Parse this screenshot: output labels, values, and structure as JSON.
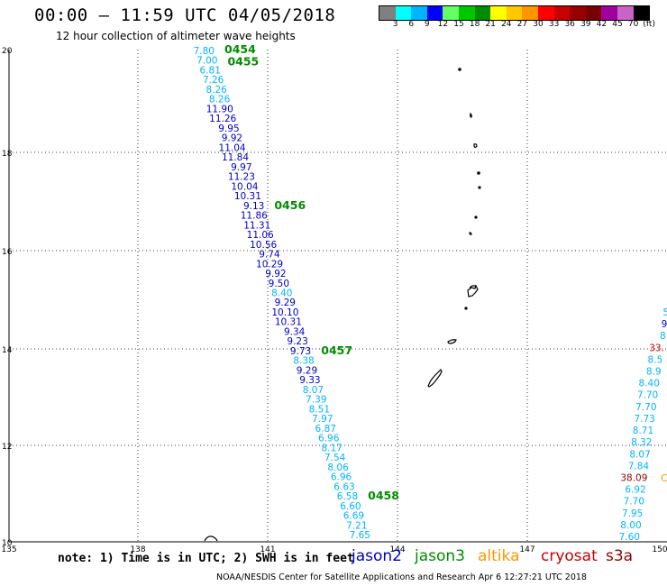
{
  "header": {
    "title": "00:00 – 11:59 UTC 04/05/2018",
    "subtitle": "12 hour collection of altimeter wave heights"
  },
  "legend": {
    "colors": [
      "#808080",
      "#00ffff",
      "#00b4ff",
      "#0000ff",
      "#64ff64",
      "#00c800",
      "#008c00",
      "#ffff00",
      "#ffc800",
      "#ff9600",
      "#ff0000",
      "#c80000",
      "#960000",
      "#780000",
      "#a000a0",
      "#c864c8",
      "#000000"
    ],
    "labels": [
      "3",
      "6",
      "9",
      "12",
      "15",
      "18",
      "21",
      "24",
      "27",
      "30",
      "33",
      "36",
      "39",
      "42",
      "45",
      "70",
      "(ft)"
    ]
  },
  "axes": {
    "x_ticks": [
      "135",
      "138",
      "141",
      "144",
      "147",
      "150"
    ],
    "y_ticks": [
      "20",
      "18",
      "16",
      "14",
      "12",
      "10"
    ]
  },
  "track_left": [
    {
      "value": "7.80",
      "color": "#00b4ff"
    },
    {
      "value": "7.00",
      "color": "#00b4ff"
    },
    {
      "value": "6.81",
      "color": "#00b4ff"
    },
    {
      "value": "7.26",
      "color": "#00b4ff"
    },
    {
      "value": "8.26",
      "color": "#00b4ff"
    },
    {
      "value": "8.26",
      "color": "#00b4ff"
    },
    {
      "value": "11.90",
      "color": "#0000c8"
    },
    {
      "value": "11.26",
      "color": "#0000c8"
    },
    {
      "value": "9.95",
      "color": "#0000c8"
    },
    {
      "value": "9.92",
      "color": "#0000c8"
    },
    {
      "value": "11.04",
      "color": "#0000c8"
    },
    {
      "value": "11.84",
      "color": "#0000c8"
    },
    {
      "value": "9.97",
      "color": "#0000c8"
    },
    {
      "value": "11.23",
      "color": "#0000c8"
    },
    {
      "value": "10.04",
      "color": "#0000c8"
    },
    {
      "value": "10.31",
      "color": "#0000c8"
    },
    {
      "value": "9.13",
      "color": "#0000c8"
    },
    {
      "value": "11.86",
      "color": "#0000c8"
    },
    {
      "value": "11.31",
      "color": "#0000c8"
    },
    {
      "value": "11.06",
      "color": "#0000c8"
    },
    {
      "value": "10.56",
      "color": "#0000c8"
    },
    {
      "value": "9.74",
      "color": "#0000c8"
    },
    {
      "value": "10.29",
      "color": "#0000c8"
    },
    {
      "value": "9.92",
      "color": "#0000c8"
    },
    {
      "value": "9.50",
      "color": "#0000c8"
    },
    {
      "value": "8.40",
      "color": "#00b4ff"
    },
    {
      "value": "9.29",
      "color": "#0000c8"
    },
    {
      "value": "10.10",
      "color": "#0000c8"
    },
    {
      "value": "10.31",
      "color": "#0000c8"
    },
    {
      "value": "9.34",
      "color": "#0000c8"
    },
    {
      "value": "9.23",
      "color": "#0000c8"
    },
    {
      "value": "9.73",
      "color": "#0000c8"
    },
    {
      "value": "8.38",
      "color": "#00b4ff"
    },
    {
      "value": "9.29",
      "color": "#0000c8"
    },
    {
      "value": "9.33",
      "color": "#0000c8"
    },
    {
      "value": "8.07",
      "color": "#00b4ff"
    },
    {
      "value": "7.39",
      "color": "#00b4ff"
    },
    {
      "value": "8.51",
      "color": "#00b4ff"
    },
    {
      "value": "7.97",
      "color": "#00b4ff"
    },
    {
      "value": "6.87",
      "color": "#00b4ff"
    },
    {
      "value": "6.96",
      "color": "#00b4ff"
    },
    {
      "value": "8.17",
      "color": "#00b4ff"
    },
    {
      "value": "7.54",
      "color": "#00b4ff"
    },
    {
      "value": "8.06",
      "color": "#00b4ff"
    },
    {
      "value": "6.96",
      "color": "#00b4ff"
    },
    {
      "value": "6.63",
      "color": "#00b4ff"
    },
    {
      "value": "6.58",
      "color": "#00b4ff"
    },
    {
      "value": "6.60",
      "color": "#00b4ff"
    },
    {
      "value": "6.69",
      "color": "#00b4ff"
    },
    {
      "value": "7.21",
      "color": "#00b4ff"
    },
    {
      "value": "7.65",
      "color": "#00b4ff"
    }
  ],
  "times_left": [
    "0454",
    "0455",
    "0456",
    "0457",
    "0458"
  ],
  "track_right": [
    {
      "value": "5",
      "color": "#00b4ff"
    },
    {
      "value": "9",
      "color": "#0000c8"
    },
    {
      "value": "8",
      "color": "#00b4ff"
    },
    {
      "value": "33.",
      "color": "#c80000"
    },
    {
      "value": "8.5",
      "color": "#00b4ff"
    },
    {
      "value": "8.9",
      "color": "#00b4ff"
    },
    {
      "value": "8.40",
      "color": "#00b4ff"
    },
    {
      "value": "7.70",
      "color": "#00b4ff"
    },
    {
      "value": "7.70",
      "color": "#00b4ff"
    },
    {
      "value": "7.73",
      "color": "#00b4ff"
    },
    {
      "value": "8.71",
      "color": "#00b4ff"
    },
    {
      "value": "8.32",
      "color": "#00b4ff"
    },
    {
      "value": "8.07",
      "color": "#00b4ff"
    },
    {
      "value": "7.84",
      "color": "#00b4ff"
    },
    {
      "value": "38.09",
      "color": "#960000"
    },
    {
      "value": "6.92",
      "color": "#00b4ff"
    },
    {
      "value": "7.70",
      "color": "#00b4ff"
    },
    {
      "value": "7.95",
      "color": "#00b4ff"
    },
    {
      "value": "8.00",
      "color": "#00b4ff"
    },
    {
      "value": "7.60",
      "color": "#00b4ff"
    }
  ],
  "right_extra": {
    "value": "C",
    "color": "#ff9600"
  },
  "note": "note: 1) Time is in UTC; 2) SWH is in feet",
  "satellites": [
    {
      "name": "jason2",
      "color": "#0000c8"
    },
    {
      "name": "jason3",
      "color": "#008c00"
    },
    {
      "name": "altika",
      "color": "#ff9600"
    },
    {
      "name": "cryosat",
      "color": "#c80000"
    },
    {
      "name": "s3a",
      "color": "#960000"
    }
  ],
  "footer": "NOAA/NESDIS Center for Satellite Applications and Research   Apr  6 12:27:21 UTC 2018",
  "colors": {
    "time_label": "#008c00",
    "grid": "#000000",
    "land": "#000000"
  }
}
